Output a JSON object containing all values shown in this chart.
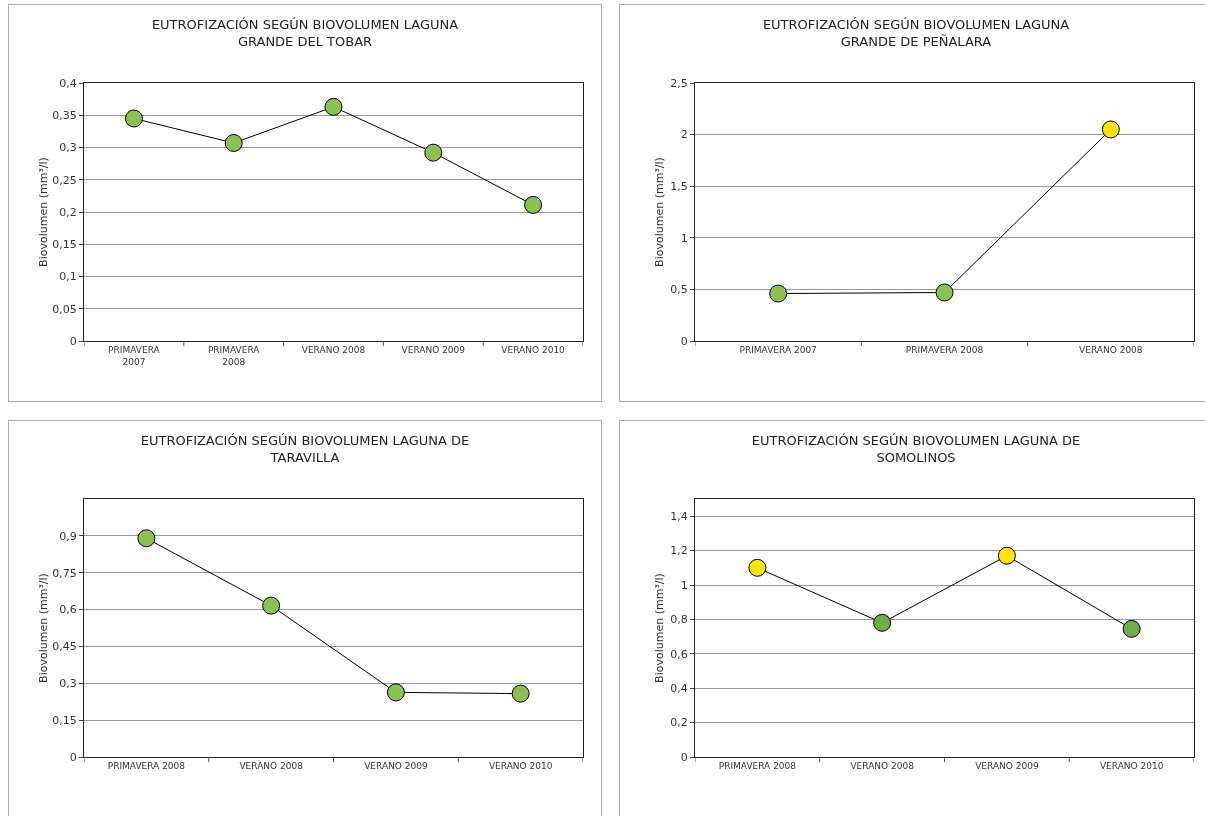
{
  "chart_data": [
    {
      "type": "line",
      "title": "EUTROFIZACIÓN SEGÚN BIOVOLUMEN LAGUNA GRANDE DEL TOBAR",
      "ylabel": "Biovolumen (mm³/l)",
      "categories": [
        "PRIMAVERA 2007",
        "PRIMAVERA 2008",
        "VERANO 2008",
        "VERANO 2009",
        "VERANO 2010"
      ],
      "series": [
        {
          "color": "#000000",
          "colors": [
            "#8cc152",
            "#8cc152",
            "#8cc152",
            "#8cc152",
            "#8cc152"
          ],
          "values": [
            0.345,
            0.307,
            0.363,
            0.292,
            0.211
          ]
        }
      ],
      "ylim": [
        0,
        0.4
      ],
      "yticks": [
        0,
        {
          "value": 0.05,
          "label": "0,05"
        },
        {
          "value": 0.1,
          "label": "0,1"
        },
        {
          "value": 0.15,
          "label": "0,15"
        },
        {
          "value": 0.2,
          "label": "0,2"
        },
        {
          "value": 0.25,
          "label": "0,25"
        },
        {
          "value": 0.3,
          "label": "0,3"
        },
        {
          "value": 0.35,
          "label": "0,35"
        },
        {
          "value": 0.4,
          "label": "0,4"
        }
      ],
      "grid": "y",
      "marker": "circle",
      "line_style": "solid"
    },
    {
      "type": "line",
      "title": "EUTROFIZACIÓN SEGÚN BIOVOLUMEN LAGUNA GRANDE DE PEÑALARA",
      "ylabel": "Biovolumen (mm³/l)",
      "categories": [
        "PRIMAVERA 2007",
        "PRIMAVERA 2008",
        "VERANO 2008"
      ],
      "series": [
        {
          "color": "#000000",
          "colors": [
            "#8cc152",
            "#8cc152",
            "#ffe500"
          ],
          "values": [
            0.46,
            0.47,
            2.05
          ]
        }
      ],
      "ylim": [
        0,
        2.5
      ],
      "yticks": [
        0,
        {
          "value": 0.5,
          "label": "0,5"
        },
        1,
        {
          "value": 1.5,
          "label": "1,5"
        },
        2,
        {
          "value": 2.5,
          "label": "2,5"
        }
      ],
      "grid": "y",
      "marker": "circle",
      "line_style": "solid"
    },
    {
      "type": "line",
      "title": "EUTROFIZACIÓN SEGÚN BIOVOLUMEN LAGUNA DE TARAVILLA",
      "ylabel": "Biovolumen (mm³/l)",
      "categories": [
        "PRIMAVERA 2008",
        "VERANO 2008",
        "VERANO 2009",
        "VERANO 2010"
      ],
      "series": [
        {
          "color": "#000000",
          "colors": [
            "#8cc152",
            "#8cc152",
            "#8cc152",
            "#8cc152"
          ],
          "values": [
            0.89,
            0.616,
            0.263,
            0.258
          ]
        }
      ],
      "ylim": [
        0,
        1.05
      ],
      "yticks": [
        0,
        {
          "value": 0.15,
          "label": "0,15"
        },
        {
          "value": 0.3,
          "label": "0,3"
        },
        {
          "value": 0.45,
          "label": "0,45"
        },
        {
          "value": 0.6,
          "label": "0,6"
        },
        {
          "value": 0.75,
          "label": "0,75"
        },
        {
          "value": 0.9,
          "label": "0,9"
        }
      ],
      "grid": "y",
      "marker": "circle",
      "line_style": "solid"
    },
    {
      "type": "line",
      "title": "EUTROFIZACIÓN SEGÚN BIOVOLUMEN LAGUNA DE SOMOLINOS",
      "ylabel": "Biovolumen (mm³/l)",
      "categories": [
        "PRIMAVERA 2008",
        "VERANO 2008",
        "VERANO 2009",
        "VERANO 2010"
      ],
      "series": [
        {
          "color": "#000000",
          "colors": [
            "#ffe500",
            "#70ad47",
            "#ffe500",
            "#70ad47"
          ],
          "values": [
            1.1,
            0.78,
            1.17,
            0.745
          ]
        }
      ],
      "ylim": [
        0,
        1.5
      ],
      "yticks": [
        0,
        {
          "value": 0.2,
          "label": "0,2"
        },
        {
          "value": 0.4,
          "label": "0,4"
        },
        {
          "value": 0.6,
          "label": "0,6"
        },
        {
          "value": 0.8,
          "label": "0,8"
        },
        1,
        {
          "value": 1.2,
          "label": "1,2"
        },
        {
          "value": 1.4,
          "label": "1,4"
        }
      ],
      "grid": "y",
      "marker": "circle",
      "line_style": "solid"
    }
  ]
}
